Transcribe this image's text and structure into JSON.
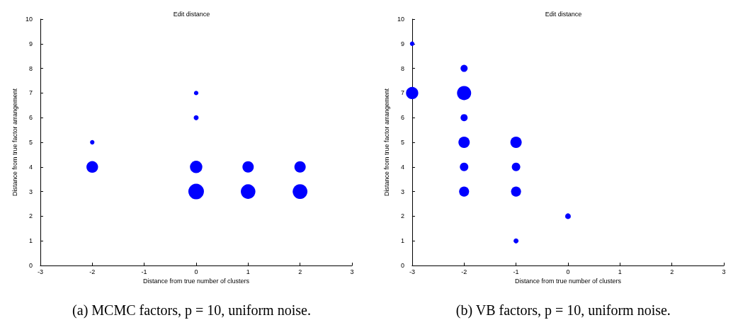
{
  "chart_data": [
    {
      "type": "bubble",
      "title": "Edit distance",
      "xlabel": "Distance from true number of clusters",
      "ylabel": "Distance from true factor arrangement",
      "annotations": [
        "(a) MCMC factors, p = 10, uniform noise."
      ],
      "x": [
        -2,
        -2,
        0,
        0,
        0,
        0,
        1,
        1,
        2,
        2
      ],
      "series": [
        {
          "color": "#0000ff",
          "values": [
            5,
            4,
            7,
            6,
            4,
            3,
            4,
            3,
            4,
            3
          ],
          "sizes": [
            0.08,
            0.56,
            0.08,
            0.1,
            0.63,
            1,
            0.53,
            0.88,
            0.53,
            0.9
          ]
        }
      ],
      "xlim": [
        -3,
        3
      ],
      "xticks": [
        -3,
        -2,
        -1,
        0,
        1,
        2,
        3
      ],
      "ylim": [
        0,
        10
      ],
      "yticks": [
        0,
        1,
        2,
        3,
        4,
        5,
        6,
        7,
        8,
        9,
        10
      ],
      "marker": "circle",
      "grid": false
    },
    {
      "type": "bubble",
      "title": "Edit distance",
      "xlabel": "Distance from true number of clusters",
      "ylabel": "Distance from true factor arrangement",
      "annotations": [
        "(b) VB factors, p = 10, uniform noise."
      ],
      "x": [
        -3,
        -3,
        -2,
        -2,
        -2,
        -2,
        -2,
        -2,
        -1,
        -1,
        -1,
        -1,
        0
      ],
      "series": [
        {
          "color": "#0000ff",
          "values": [
            9,
            7,
            8,
            7,
            6,
            5,
            4,
            3,
            5,
            4,
            3,
            1,
            2
          ],
          "sizes": [
            0.1,
            0.75,
            0.25,
            1,
            0.25,
            0.64,
            0.36,
            0.5,
            0.64,
            0.36,
            0.5,
            0.12,
            0.16
          ]
        }
      ],
      "xlim": [
        -3,
        3
      ],
      "xticks": [
        -3,
        -2,
        -1,
        0,
        1,
        2,
        3
      ],
      "ylim": [
        0,
        10
      ],
      "yticks": [
        0,
        1,
        2,
        3,
        4,
        5,
        6,
        7,
        8,
        9,
        10
      ],
      "marker": "circle",
      "grid": false
    }
  ]
}
